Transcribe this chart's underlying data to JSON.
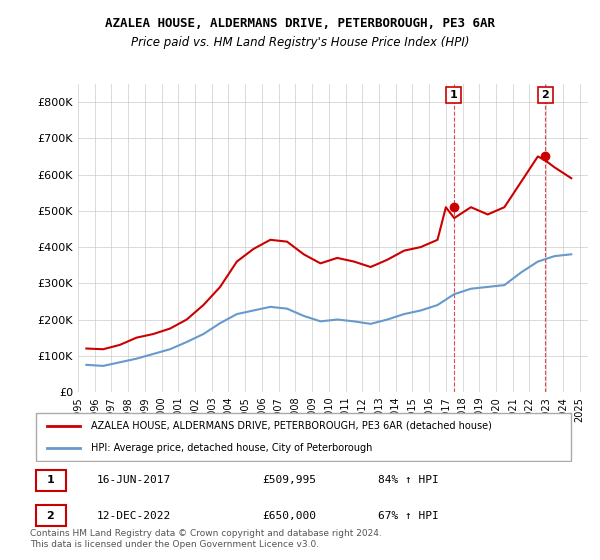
{
  "title": "AZALEA HOUSE, ALDERMANS DRIVE, PETERBOROUGH, PE3 6AR",
  "subtitle": "Price paid vs. HM Land Registry's House Price Index (HPI)",
  "legend_line1": "AZALEA HOUSE, ALDERMANS DRIVE, PETERBOROUGH, PE3 6AR (detached house)",
  "legend_line2": "HPI: Average price, detached house, City of Peterborough",
  "annotation1": {
    "num": "1",
    "date": "16-JUN-2017",
    "price": "£509,995",
    "hpi": "84% ↑ HPI"
  },
  "annotation2": {
    "num": "2",
    "date": "12-DEC-2022",
    "price": "£650,000",
    "hpi": "67% ↑ HPI"
  },
  "footer": "Contains HM Land Registry data © Crown copyright and database right 2024.\nThis data is licensed under the Open Government Licence v3.0.",
  "red_color": "#cc0000",
  "blue_color": "#6699cc",
  "background_color": "#ffffff",
  "grid_color": "#cccccc",
  "ylim": [
    0,
    850000
  ],
  "yticks": [
    0,
    100000,
    200000,
    300000,
    400000,
    500000,
    600000,
    700000,
    800000
  ],
  "ytick_labels": [
    "£0",
    "£100K",
    "£200K",
    "£300K",
    "£400K",
    "£500K",
    "£600K",
    "£700K",
    "£800K"
  ],
  "xlim_start": 1995.0,
  "xlim_end": 2025.5,
  "red_x": [
    1995.5,
    1996.5,
    1997.5,
    1998.5,
    1999.5,
    2000.5,
    2001.5,
    2002.5,
    2003.5,
    2004.5,
    2005.5,
    2006.5,
    2007.5,
    2008.5,
    2009.5,
    2010.5,
    2011.5,
    2012.5,
    2013.5,
    2014.5,
    2015.5,
    2016.5,
    2017.0,
    2017.5,
    2018.5,
    2019.5,
    2020.5,
    2021.5,
    2022.5,
    2022.92,
    2023.5,
    2024.5
  ],
  "red_y": [
    120000,
    118000,
    130000,
    150000,
    160000,
    175000,
    200000,
    240000,
    290000,
    360000,
    395000,
    420000,
    415000,
    380000,
    355000,
    370000,
    360000,
    345000,
    365000,
    390000,
    400000,
    420000,
    509995,
    480000,
    510000,
    490000,
    510000,
    580000,
    650000,
    640000,
    620000,
    590000
  ],
  "blue_x": [
    1995.5,
    1996.5,
    1997.5,
    1998.5,
    1999.5,
    2000.5,
    2001.5,
    2002.5,
    2003.5,
    2004.5,
    2005.5,
    2006.5,
    2007.5,
    2008.5,
    2009.5,
    2010.5,
    2011.5,
    2012.5,
    2013.5,
    2014.5,
    2015.5,
    2016.5,
    2017.5,
    2018.5,
    2019.5,
    2020.5,
    2021.5,
    2022.5,
    2023.5,
    2024.5
  ],
  "blue_y": [
    75000,
    72000,
    82000,
    92000,
    105000,
    118000,
    138000,
    160000,
    190000,
    215000,
    225000,
    235000,
    230000,
    210000,
    195000,
    200000,
    195000,
    188000,
    200000,
    215000,
    225000,
    240000,
    270000,
    285000,
    290000,
    295000,
    330000,
    360000,
    375000,
    380000
  ],
  "sale1_x": 2017.46,
  "sale1_y": 509995,
  "sale2_x": 2022.95,
  "sale2_y": 650000,
  "marker_color": "#cc0000"
}
